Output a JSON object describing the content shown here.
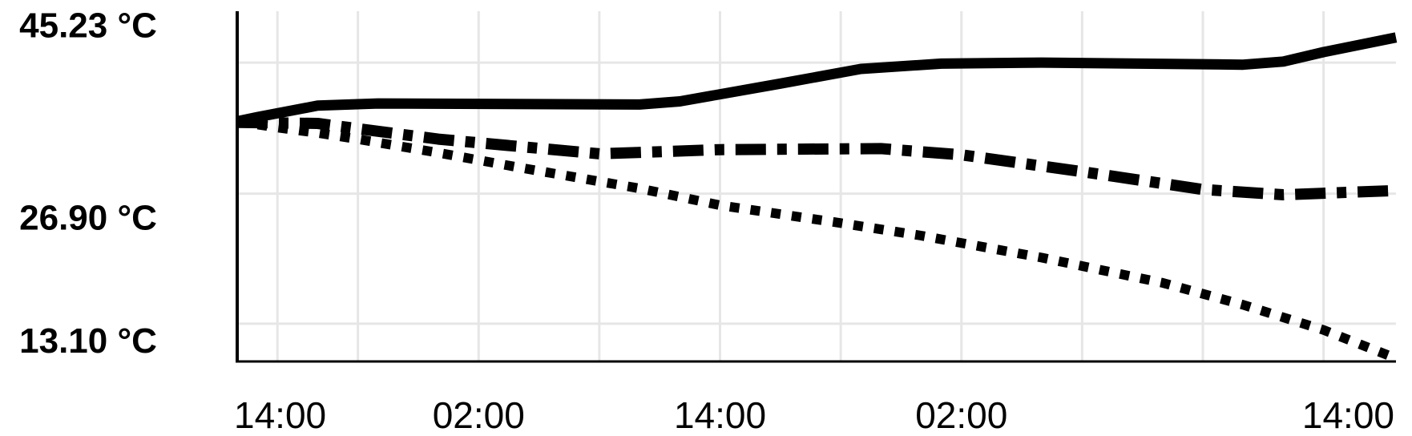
{
  "chart_data": {
    "type": "line",
    "title": "",
    "xlabel": "",
    "ylabel": "",
    "unit": "°C",
    "x_hours": [
      0,
      2,
      6,
      12,
      18,
      24,
      30,
      36,
      42,
      48,
      54,
      60,
      66,
      72
    ],
    "x_tick_hours": [
      0,
      12,
      24,
      36,
      48
    ],
    "x_tick_labels": [
      "14:00",
      "02:00",
      "14:00",
      "02:00",
      "14:00"
    ],
    "y_tick_labels": [
      "45.23 °C",
      "26.90 °C",
      "13.10 °C"
    ],
    "y_tick_values": [
      45.23,
      26.9,
      13.1
    ],
    "xlim": [
      0,
      57.6
    ],
    "ylim": [
      13.1,
      46.5
    ],
    "grid": true,
    "series": [
      {
        "style": "solid",
        "x": [
          0,
          1,
          4,
          7,
          20,
          22,
          27,
          31,
          35,
          40,
          50,
          52,
          54,
          57.6
        ],
        "y": [
          36.0,
          36.4,
          37.5,
          37.7,
          37.6,
          37.9,
          39.6,
          41.0,
          41.5,
          41.6,
          41.4,
          41.7,
          42.6,
          44.0
        ]
      },
      {
        "style": "dash-dot",
        "x": [
          0,
          4,
          10,
          18,
          24,
          32,
          36,
          42,
          48,
          52,
          57.6
        ],
        "y": [
          35.9,
          35.8,
          34.3,
          32.9,
          33.3,
          33.4,
          32.8,
          31.2,
          29.5,
          29.0,
          29.4
        ]
      },
      {
        "style": "dotted",
        "x": [
          0,
          2,
          4,
          6,
          10,
          14,
          20,
          24,
          30,
          34,
          40,
          46,
          50,
          54,
          57.6
        ],
        "y": [
          36.0,
          35.4,
          34.9,
          34.3,
          33.0,
          31.6,
          29.6,
          28.0,
          26.3,
          25.1,
          23.0,
          20.6,
          18.5,
          16.1,
          13.4
        ]
      }
    ]
  }
}
